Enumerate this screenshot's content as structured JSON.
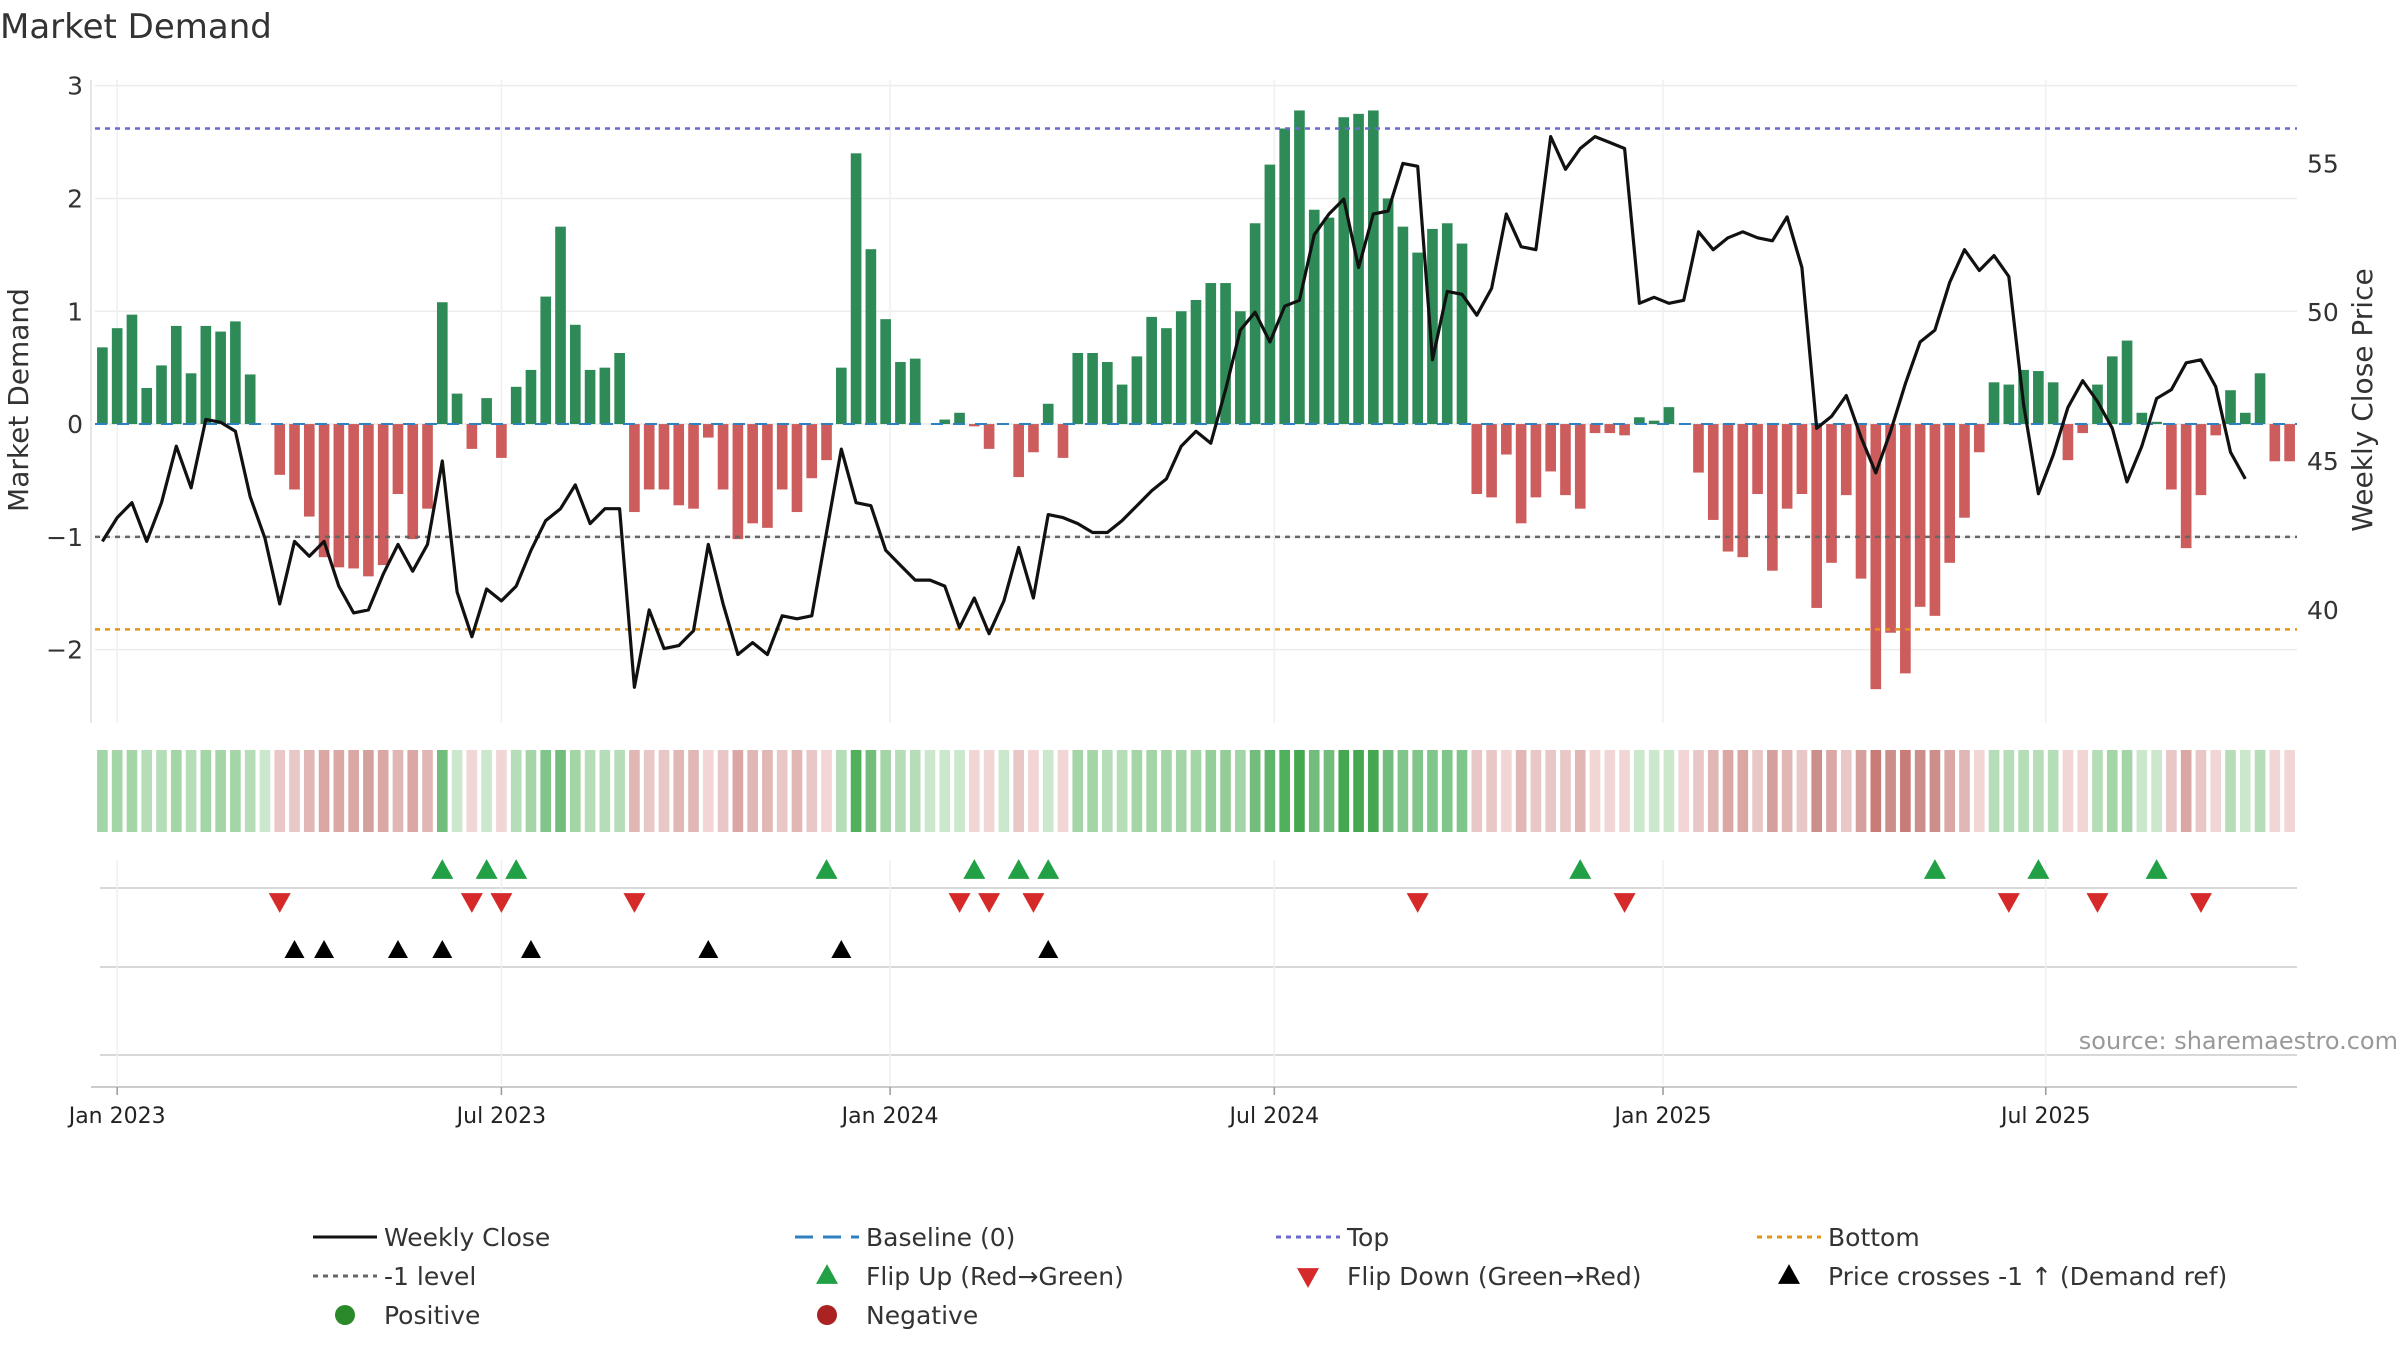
{
  "chart_data": {
    "type": "bar",
    "title": "Market Demand",
    "ylabel": "Market Demand",
    "y2label": "Weekly Close Price",
    "ylim": [
      -2.65,
      3.05
    ],
    "y2lim": [
      36.2,
      57.8
    ],
    "yticks": [
      -2,
      -1,
      0,
      1,
      2,
      3
    ],
    "y2ticks": [
      40,
      45,
      50,
      55
    ],
    "source": "source: sharemaestro.com",
    "reference_lines": {
      "top": 2.62,
      "bottom": -1.82,
      "level_minus_one": -1,
      "baseline": 0
    },
    "x_ticks": [
      {
        "label": "Jan 2023",
        "index": 1
      },
      {
        "label": "Jul 2023",
        "index": 27
      },
      {
        "label": "Jan 2024",
        "index": 53.3
      },
      {
        "label": "Jul 2024",
        "index": 79.3
      },
      {
        "label": "Jan 2025",
        "index": 105.6
      },
      {
        "label": "Jul 2025",
        "index": 131.5
      }
    ],
    "series": [
      {
        "name": "Market Demand",
        "values": [
          0.68,
          0.85,
          0.97,
          0.32,
          0.52,
          0.87,
          0.45,
          0.87,
          0.82,
          0.91,
          0.44,
          0,
          -0.45,
          -0.58,
          -0.82,
          -1.18,
          -1.27,
          -1.28,
          -1.35,
          -1.25,
          -0.62,
          -1.02,
          -0.75,
          1.08,
          0.27,
          -0.22,
          0.23,
          -0.3,
          0.33,
          0.48,
          1.13,
          1.75,
          0.88,
          0.48,
          0.5,
          0.63,
          -0.78,
          -0.58,
          -0.58,
          -0.72,
          -0.75,
          -0.12,
          -0.58,
          -1.02,
          -0.88,
          -0.92,
          -0.58,
          -0.78,
          -0.48,
          -0.32,
          0.5,
          2.4,
          1.55,
          0.93,
          0.55,
          0.58,
          0,
          0.04,
          0.1,
          -0.02,
          -0.22,
          0,
          -0.47,
          -0.25,
          0.18,
          -0.3,
          0.63,
          0.63,
          0.55,
          0.35,
          0.6,
          0.95,
          0.85,
          1.0,
          1.1,
          1.25,
          1.25,
          1.0,
          1.78,
          2.3,
          2.62,
          2.78,
          1.9,
          1.83,
          2.72,
          2.75,
          2.78,
          2.0,
          1.75,
          1.52,
          1.73,
          1.78,
          1.6,
          -0.62,
          -0.65,
          -0.27,
          -0.88,
          -0.65,
          -0.42,
          -0.63,
          -0.75,
          -0.08,
          -0.08,
          -0.1,
          0.06,
          0.03,
          0.15,
          0,
          -0.43,
          -0.85,
          -1.13,
          -1.18,
          -0.62,
          -1.3,
          -0.75,
          -0.62,
          -1.63,
          -1.23,
          -0.63,
          -1.37,
          -2.35,
          -1.85,
          -2.21,
          -1.62,
          -1.7,
          -1.23,
          -0.83,
          -0.25,
          0.37,
          0.35,
          0.48,
          0.47,
          0.37,
          -0.32,
          -0.08,
          0.35,
          0.6,
          0.74,
          0.1,
          0.02,
          -0.58,
          -1.1,
          -0.63,
          -0.1,
          0.3,
          0.1,
          0.45,
          -0.33,
          -0.33
        ]
      },
      {
        "name": "Weekly Close",
        "values": [
          42.3,
          43.1,
          43.6,
          42.3,
          43.6,
          45.5,
          44.1,
          46.4,
          46.3,
          46.0,
          43.8,
          42.4,
          40.2,
          42.3,
          41.8,
          42.3,
          40.8,
          39.9,
          40.0,
          41.2,
          42.2,
          41.3,
          42.2,
          45.0,
          40.6,
          39.1,
          40.7,
          40.3,
          40.8,
          42.0,
          43.0,
          43.4,
          44.2,
          42.9,
          43.4,
          43.4,
          37.4,
          40.0,
          38.7,
          38.8,
          39.3,
          42.2,
          40.2,
          38.5,
          38.9,
          38.5,
          39.8,
          39.7,
          39.8,
          42.6,
          45.4,
          43.6,
          43.5,
          42.0,
          41.5,
          41.0,
          41.0,
          40.8,
          39.4,
          40.4,
          39.2,
          40.3,
          42.1,
          40.4,
          43.2,
          43.1,
          42.9,
          42.6,
          42.6,
          43.0,
          43.5,
          44.0,
          44.4,
          45.5,
          46.0,
          45.6,
          47.4,
          49.4,
          50.0,
          49.0,
          50.2,
          50.4,
          52.6,
          53.3,
          53.8,
          51.5,
          53.3,
          53.4,
          55.0,
          54.9,
          48.4,
          50.7,
          50.6,
          49.9,
          50.8,
          53.3,
          52.2,
          52.1,
          55.9,
          54.8,
          55.5,
          55.9,
          55.7,
          55.5,
          50.3,
          50.5,
          50.3,
          50.4,
          52.7,
          52.1,
          52.5,
          52.7,
          52.5,
          52.4,
          53.2,
          51.5,
          46.1,
          46.5,
          47.2,
          45.8,
          44.6,
          46.0,
          47.6,
          49.0,
          49.4,
          51.0,
          52.1,
          51.4,
          51.9,
          51.2,
          46.9,
          43.9,
          45.2,
          46.8,
          47.7,
          47.0,
          46.1,
          44.3,
          45.5,
          47.1,
          47.4,
          48.3,
          48.4,
          47.5,
          45.3,
          44.4
        ]
      }
    ],
    "demand_colors": [
      "#a4d5a7",
      "#a4d5a7",
      "#a4d5a7",
      "#b5ddb7",
      "#b5ddb7",
      "#a4d5a7",
      "#b5ddb7",
      "#a4d5a7",
      "#a4d5a7",
      "#a4d5a7",
      "#b5ddb7",
      "#cbe8cc",
      "#e8c7c6",
      "#e8c7c6",
      "#e1b7b5",
      "#dba7a5",
      "#dba7a5",
      "#dba7a5",
      "#d4a09e",
      "#dba7a5",
      "#e1b7b5",
      "#dba7a5",
      "#e1b7b5",
      "#72bd7b",
      "#cbe8cc",
      "#f1d6d5",
      "#cbe8cc",
      "#f1d6d5",
      "#b5ddb7",
      "#a4d5a7",
      "#80c589",
      "#72bd7b",
      "#a4d5a7",
      "#b5ddb7",
      "#b5ddb7",
      "#b5ddb7",
      "#e1b7b5",
      "#e8c7c6",
      "#e8c7c6",
      "#e1b7b5",
      "#e1b7b5",
      "#f1d6d5",
      "#e8c7c6",
      "#dba7a5",
      "#e1b7b5",
      "#e1b7b5",
      "#e8c7c6",
      "#e1b7b5",
      "#e8c7c6",
      "#f1d6d5",
      "#b5ddb7",
      "#50b05b",
      "#72bd7b",
      "#a4d5a7",
      "#b5ddb7",
      "#b5ddb7",
      "#cbe8cc",
      "#cbe8cc",
      "#cbe8cc",
      "#f1d6d5",
      "#f1d6d5",
      "#cbe8cc",
      "#e8c7c6",
      "#f1d6d5",
      "#cbe8cc",
      "#f1d6d5",
      "#a4d5a7",
      "#a4d5a7",
      "#b5ddb7",
      "#b5ddb7",
      "#a4d5a7",
      "#a4d5a7",
      "#a4d5a7",
      "#a4d5a7",
      "#a4d5a7",
      "#94cd98",
      "#94cd98",
      "#a4d5a7",
      "#72bd7b",
      "#5fb569",
      "#50b05b",
      "#45a850",
      "#72bd7b",
      "#72bd7b",
      "#45a850",
      "#45a850",
      "#45a850",
      "#72bd7b",
      "#80c589",
      "#80c589",
      "#80c589",
      "#80c589",
      "#80c589",
      "#e8c7c6",
      "#e8c7c6",
      "#f1d6d5",
      "#e1b7b5",
      "#e8c7c6",
      "#e8c7c6",
      "#e8c7c6",
      "#e1b7b5",
      "#f1d6d5",
      "#f1d6d5",
      "#f1d6d5",
      "#cbe8cc",
      "#cbe8cc",
      "#cbe8cc",
      "#f1d6d5",
      "#e8c7c6",
      "#e1b7b5",
      "#dba7a5",
      "#dba7a5",
      "#e8c7c6",
      "#d4a09e",
      "#e1b7b5",
      "#e8c7c6",
      "#cc8e8b",
      "#dba7a5",
      "#e8c7c6",
      "#d4a09e",
      "#c97b77",
      "#cc8e8b",
      "#c97b77",
      "#cc8e8b",
      "#cc8e8b",
      "#dba7a5",
      "#e1b7b5",
      "#f1d6d5",
      "#b5ddb7",
      "#b5ddb7",
      "#b5ddb7",
      "#b5ddb7",
      "#b5ddb7",
      "#f1d6d5",
      "#f1d6d5",
      "#b5ddb7",
      "#a4d5a7",
      "#a4d5a7",
      "#cbe8cc",
      "#cbe8cc",
      "#e8c7c6",
      "#dba7a5",
      "#e8c7c6",
      "#f1d6d5",
      "#b5ddb7",
      "#cbe8cc",
      "#b5ddb7",
      "#f1d6d5",
      "#f1d6d5"
    ],
    "flip_up_indices": [
      23,
      26,
      28,
      49,
      59,
      62,
      64,
      100,
      124,
      131,
      139
    ],
    "flip_down_indices": [
      12,
      25,
      27,
      36,
      58,
      60,
      63,
      89,
      103,
      129,
      135,
      142
    ],
    "price_cross_indices": [
      13,
      15,
      20,
      23,
      29,
      41,
      50,
      64
    ],
    "colors": {
      "positive_bar": "#2e8b57",
      "negative_bar": "#cd5c5c",
      "weekly_close": "#111111",
      "top_line": "#6a6acd",
      "bottom_line": "#e69512",
      "baseline": "#2f80c0",
      "minus_one_line": "#666666",
      "flip_up": "#22a045",
      "flip_down": "#d62a2a",
      "price_cross": "#000000",
      "positive_dot": "#2a8a2a",
      "negative_dot": "#aa2222"
    },
    "legend": [
      {
        "label": "Weekly Close",
        "symbol": "line-solid"
      },
      {
        "label": "Baseline (0)",
        "symbol": "line-dash"
      },
      {
        "label": "Top",
        "symbol": "line-dot-purple"
      },
      {
        "label": "Bottom",
        "symbol": "line-dot-orange"
      },
      {
        "label": "-1 level",
        "symbol": "line-dot-gray"
      },
      {
        "label": "Flip Up (Red→Green)",
        "symbol": "triangle-up-green"
      },
      {
        "label": "Flip Down (Green→Red)",
        "symbol": "triangle-down-red"
      },
      {
        "label": "Price crosses -1 ↑ (Demand ref)",
        "symbol": "triangle-up-black"
      },
      {
        "label": "Positive",
        "symbol": "dot-green"
      },
      {
        "label": "Negative",
        "symbol": "dot-red"
      }
    ]
  }
}
